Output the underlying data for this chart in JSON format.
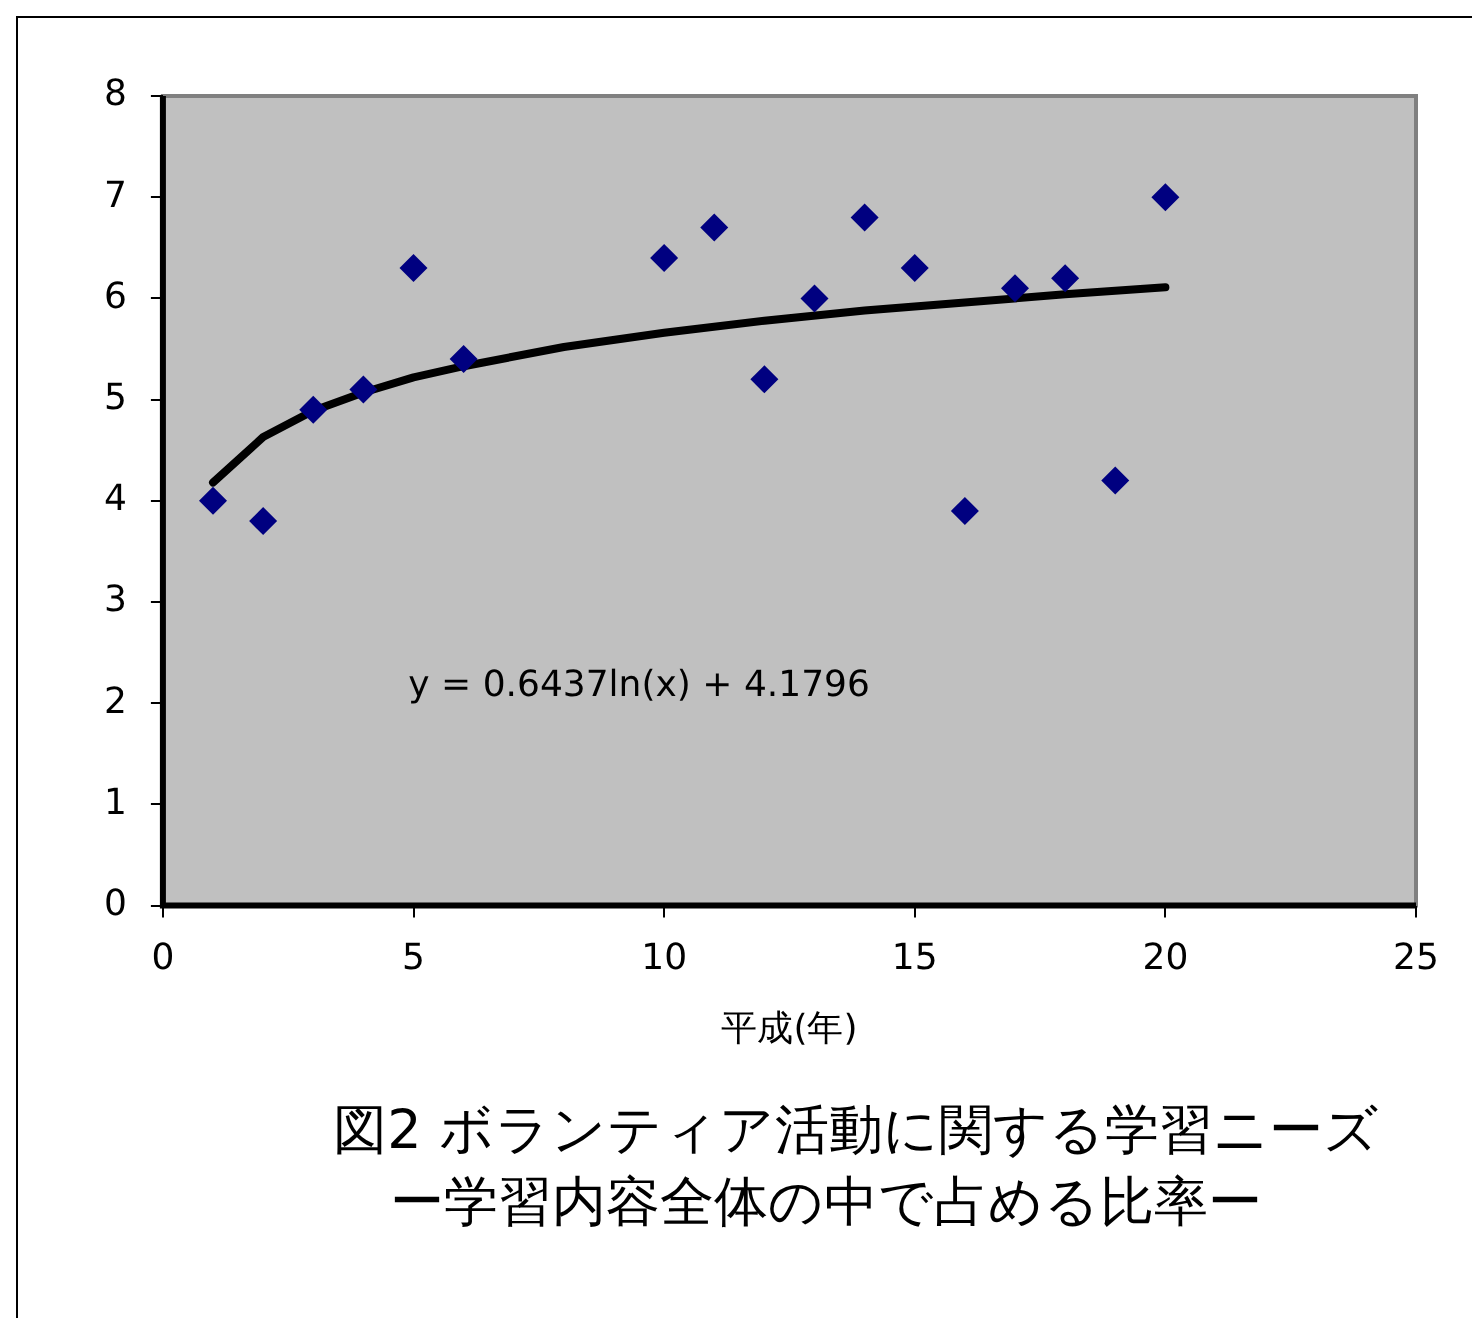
{
  "chart_data": {
    "type": "scatter",
    "title": "図2 ボランティア活動に関する学習ニーズ",
    "subtitle": "ー学習内容全体の中で占める比率ー",
    "xlabel": "平成(年)",
    "series": [
      {
        "color": "#000080",
        "marker": "diamond",
        "x": [
          1,
          2,
          3,
          4,
          5,
          6,
          10,
          11,
          12,
          13,
          14,
          15,
          16,
          17,
          18,
          19,
          20
        ],
        "values": [
          4.0,
          3.8,
          4.9,
          5.1,
          6.3,
          5.4,
          6.4,
          6.7,
          5.2,
          6.0,
          6.8,
          6.3,
          3.9,
          6.1,
          6.2,
          4.2,
          7.0
        ]
      },
      {
        "type": "line",
        "color": "#000000",
        "marker": "none",
        "x": [
          1,
          2,
          3,
          4,
          5,
          6,
          8,
          10,
          12,
          14,
          16,
          18,
          20
        ],
        "values": [
          4.18,
          4.63,
          4.89,
          5.07,
          5.22,
          5.33,
          5.52,
          5.66,
          5.78,
          5.88,
          5.96,
          6.04,
          6.11
        ]
      }
    ],
    "xlim": [
      0,
      25
    ],
    "xticks": [
      0,
      5,
      10,
      15,
      20,
      25
    ],
    "ylim": [
      0,
      8
    ],
    "yticks": [
      0,
      1,
      2,
      3,
      4,
      5,
      6,
      7,
      8
    ],
    "annotations": [
      "y = 0.6437ln(x) + 4.1796"
    ],
    "grid": false,
    "legend": false
  }
}
